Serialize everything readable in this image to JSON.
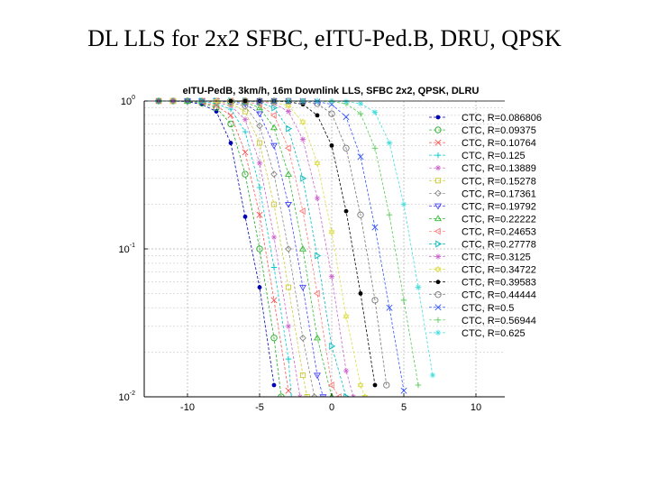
{
  "slide": {
    "title": "DL LLS for 2x2 SFBC, eITU-Ped.B, DRU, QPSK"
  },
  "chart_data": {
    "type": "line",
    "title": "eITU-PedB, 3km/h, 16m Downlink LLS, SFBC 2x2, QPSK, DLRU",
    "xlabel": "",
    "ylabel": "",
    "xlim": [
      -13,
      12
    ],
    "ylim": [
      0.01,
      1
    ],
    "y_scale": "log",
    "grid": true,
    "legend_position": "right",
    "x_ticks": [
      -10,
      -5,
      0,
      5,
      10
    ],
    "x_tick_labels": [
      "-10",
      "-5",
      "0",
      "5",
      "10"
    ],
    "y_ticks": [
      1,
      0.1,
      0.01
    ],
    "y_tick_labels": [
      {
        "base": "10",
        "exp": "0"
      },
      {
        "base": "10",
        "exp": "-1"
      },
      {
        "base": "10",
        "exp": "-2"
      }
    ],
    "series": [
      {
        "name": "CTC, R=0.086806",
        "color": "#0000b0",
        "marker": "dot",
        "x": [
          -12,
          -11,
          -10,
          -9,
          -8,
          -7,
          -6,
          -5,
          -4
        ],
        "y": [
          1,
          1,
          0.99,
          0.95,
          0.85,
          0.52,
          0.165,
          0.055,
          0.012
        ]
      },
      {
        "name": "CTC, R=0.09375",
        "color": "#22aa22",
        "marker": "circle",
        "x": [
          -12,
          -11,
          -10,
          -9,
          -8,
          -7,
          -6,
          -5,
          -4,
          -3.5
        ],
        "y": [
          1,
          1,
          1,
          0.97,
          0.9,
          0.7,
          0.32,
          0.1,
          0.025,
          0.01
        ]
      },
      {
        "name": "CTC, R=0.10764",
        "color": "#ff5555",
        "marker": "x",
        "x": [
          -12,
          -11,
          -10,
          -9,
          -8,
          -7,
          -6,
          -5,
          -4,
          -3
        ],
        "y": [
          1,
          1,
          1,
          0.98,
          0.93,
          0.8,
          0.45,
          0.17,
          0.045,
          0.011
        ]
      },
      {
        "name": "CTC, R=0.125",
        "color": "#00cccc",
        "marker": "plus",
        "x": [
          -12,
          -11,
          -10,
          -9,
          -8,
          -7,
          -6,
          -5,
          -4,
          -3,
          -2.8
        ],
        "y": [
          1,
          1,
          1,
          0.99,
          0.96,
          0.88,
          0.62,
          0.26,
          0.075,
          0.018,
          0.01
        ]
      },
      {
        "name": "CTC, R=0.13889",
        "color": "#cc66cc",
        "marker": "star",
        "x": [
          -11,
          -10,
          -9,
          -8,
          -7,
          -6,
          -5,
          -4,
          -3,
          -2.2
        ],
        "y": [
          1,
          1,
          1,
          0.98,
          0.93,
          0.75,
          0.38,
          0.12,
          0.03,
          0.01
        ]
      },
      {
        "name": "CTC, R=0.15278",
        "color": "#cccc33",
        "marker": "square",
        "x": [
          -11,
          -10,
          -9,
          -8,
          -7,
          -6,
          -5,
          -4,
          -3,
          -2,
          -1.7
        ],
        "y": [
          1,
          1,
          1,
          0.99,
          0.96,
          0.85,
          0.52,
          0.2,
          0.055,
          0.014,
          0.01
        ]
      },
      {
        "name": "CTC, R=0.17361",
        "color": "#888888",
        "marker": "diamond",
        "x": [
          -11,
          -10,
          -9,
          -8,
          -7,
          -6,
          -5,
          -4,
          -3,
          -2,
          -1.2
        ],
        "y": [
          1,
          1,
          1,
          1,
          0.98,
          0.92,
          0.68,
          0.32,
          0.1,
          0.025,
          0.01
        ]
      },
      {
        "name": "CTC, R=0.19792",
        "color": "#4444ff",
        "marker": "triangle-down",
        "x": [
          -10,
          -9,
          -8,
          -7,
          -6,
          -5,
          -4,
          -3,
          -2,
          -1,
          -0.6
        ],
        "y": [
          1,
          1,
          1,
          0.99,
          0.96,
          0.82,
          0.5,
          0.2,
          0.055,
          0.014,
          0.01
        ]
      },
      {
        "name": "CTC, R=0.22222",
        "color": "#33bb33",
        "marker": "triangle-up",
        "x": [
          -10,
          -9,
          -8,
          -7,
          -6,
          -5,
          -4,
          -3,
          -2,
          -1,
          0
        ],
        "y": [
          1,
          1,
          1,
          1,
          0.98,
          0.9,
          0.66,
          0.32,
          0.1,
          0.025,
          0.01
        ]
      },
      {
        "name": "CTC, R=0.24653",
        "color": "#ff7777",
        "marker": "triangle-left",
        "x": [
          -9,
          -8,
          -7,
          -6,
          -5,
          -4,
          -3,
          -2,
          -1,
          0,
          0.5
        ],
        "y": [
          1,
          1,
          1,
          0.99,
          0.95,
          0.8,
          0.48,
          0.18,
          0.05,
          0.012,
          0.01
        ]
      },
      {
        "name": "CTC, R=0.27778",
        "color": "#00bbbb",
        "marker": "triangle-right",
        "x": [
          -9,
          -8,
          -7,
          -6,
          -5,
          -4,
          -3,
          -2,
          -1,
          0,
          1
        ],
        "y": [
          1,
          1,
          1,
          1,
          0.98,
          0.9,
          0.65,
          0.3,
          0.09,
          0.022,
          0.01
        ]
      },
      {
        "name": "CTC, R=0.3125",
        "color": "#cc66cc",
        "marker": "star",
        "x": [
          -8,
          -7,
          -6,
          -5,
          -4,
          -3,
          -2,
          -1,
          0,
          1,
          1.5
        ],
        "y": [
          1,
          1,
          1,
          0.99,
          0.96,
          0.85,
          0.55,
          0.22,
          0.065,
          0.015,
          0.01
        ]
      },
      {
        "name": "CTC, R=0.34722",
        "color": "#dddd44",
        "marker": "hexagram",
        "x": [
          -8,
          -7,
          -6,
          -5,
          -4,
          -3,
          -2,
          -1,
          0,
          1,
          2,
          2.3
        ],
        "y": [
          1,
          1,
          1,
          1,
          0.98,
          0.93,
          0.72,
          0.38,
          0.13,
          0.035,
          0.012,
          0.01
        ]
      },
      {
        "name": "CTC, R=0.39583",
        "color": "#000000",
        "marker": "dot",
        "x": [
          -7,
          -6,
          -5,
          -4,
          -3,
          -2,
          -1,
          0,
          1,
          2,
          3
        ],
        "y": [
          1,
          1,
          1,
          1,
          0.99,
          0.95,
          0.8,
          0.5,
          0.18,
          0.05,
          0.012
        ]
      },
      {
        "name": "CTC, R=0.44444",
        "color": "#777777",
        "marker": "circle",
        "x": [
          -6,
          -5,
          -4,
          -3,
          -2,
          -1,
          0,
          1,
          2,
          3,
          3.8
        ],
        "y": [
          1,
          1,
          1,
          1,
          0.99,
          0.96,
          0.82,
          0.48,
          0.17,
          0.045,
          0.012
        ]
      },
      {
        "name": "CTC, R=0.5",
        "color": "#3355ff",
        "marker": "x",
        "x": [
          -5,
          -4,
          -3,
          -2,
          -1,
          0,
          1,
          2,
          3,
          4,
          5
        ],
        "y": [
          1,
          1,
          1,
          1,
          0.99,
          0.95,
          0.78,
          0.42,
          0.14,
          0.04,
          0.011
        ]
      },
      {
        "name": "CTC, R=0.56944",
        "color": "#55cc55",
        "marker": "plus",
        "x": [
          -4,
          -3,
          -2,
          -1,
          0,
          1,
          2,
          3,
          4,
          5,
          6
        ],
        "y": [
          1,
          1,
          1,
          1,
          0.99,
          0.96,
          0.82,
          0.48,
          0.17,
          0.045,
          0.012
        ]
      },
      {
        "name": "CTC, R=0.625",
        "color": "#44dddd",
        "marker": "star",
        "x": [
          -3,
          -2,
          -1,
          0,
          1,
          2,
          3,
          4,
          5,
          6,
          7
        ],
        "y": [
          1,
          1,
          1,
          1,
          0.99,
          0.96,
          0.84,
          0.52,
          0.2,
          0.055,
          0.014
        ]
      }
    ]
  }
}
